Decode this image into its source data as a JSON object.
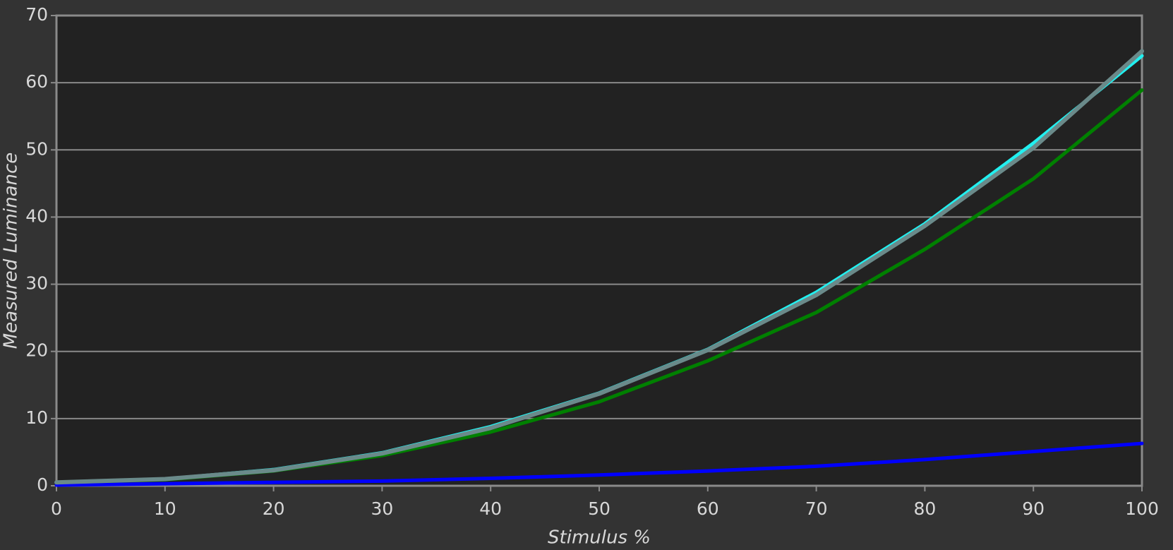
{
  "chart_data": {
    "type": "line",
    "x_label": "Stimulus %",
    "y_label": "Measured Luminance",
    "x": [
      0,
      10,
      20,
      30,
      40,
      50,
      60,
      70,
      80,
      90,
      100
    ],
    "series": [
      {
        "color": "#0000ff",
        "values": [
          0.1,
          0.3,
          0.5,
          0.7,
          1.1,
          1.6,
          2.2,
          2.9,
          3.9,
          5.1,
          6.3
        ]
      },
      {
        "color": "#008000",
        "values": [
          0.5,
          0.9,
          2.2,
          4.5,
          8.0,
          12.5,
          18.6,
          25.8,
          35.2,
          45.7,
          58.9
        ]
      },
      {
        "color": "#22f0f0",
        "values": [
          0.5,
          1.0,
          2.4,
          4.9,
          8.8,
          13.8,
          20.3,
          28.8,
          39.0,
          51.0,
          64.0
        ]
      },
      {
        "color": "#6a8a8a",
        "values": [
          0.5,
          1.0,
          2.3,
          4.8,
          8.6,
          13.7,
          20.2,
          28.4,
          38.7,
          50.3,
          64.7
        ]
      }
    ],
    "xlim": [
      0,
      100
    ],
    "xticks": [
      0,
      10,
      20,
      30,
      40,
      50,
      60,
      70,
      80,
      90,
      100
    ],
    "ylim": [
      0,
      70
    ],
    "yticks": [
      0,
      10,
      20,
      30,
      40,
      50,
      60,
      70
    ],
    "grid": true
  }
}
